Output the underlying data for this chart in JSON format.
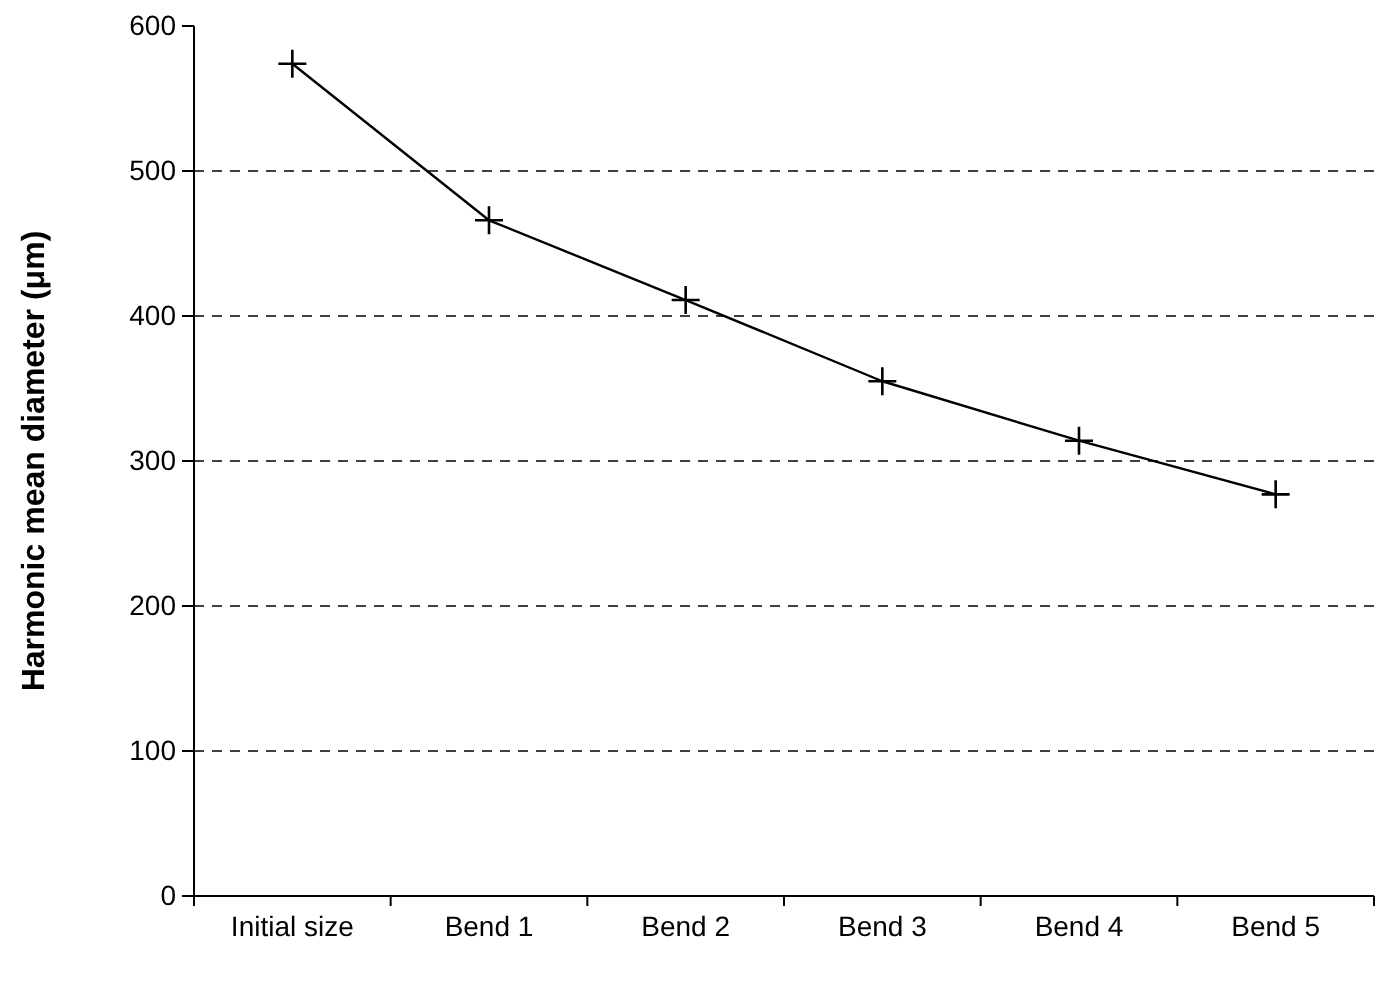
{
  "chart_data": {
    "type": "line",
    "ylabel": "Harmonic mean diameter (μm)",
    "categories": [
      "Initial size",
      "Bend 1",
      "Bend 2",
      "Bend 3",
      "Bend 4",
      "Bend 5"
    ],
    "series": [
      {
        "color": "#000000",
        "values": [
          574,
          466,
          411,
          355,
          314,
          277
        ]
      }
    ],
    "ylim": [
      0,
      600
    ],
    "yticks": [
      0,
      100,
      200,
      300,
      400,
      500,
      600
    ],
    "grid": "y",
    "marker": "cross",
    "line_style": "solid"
  }
}
